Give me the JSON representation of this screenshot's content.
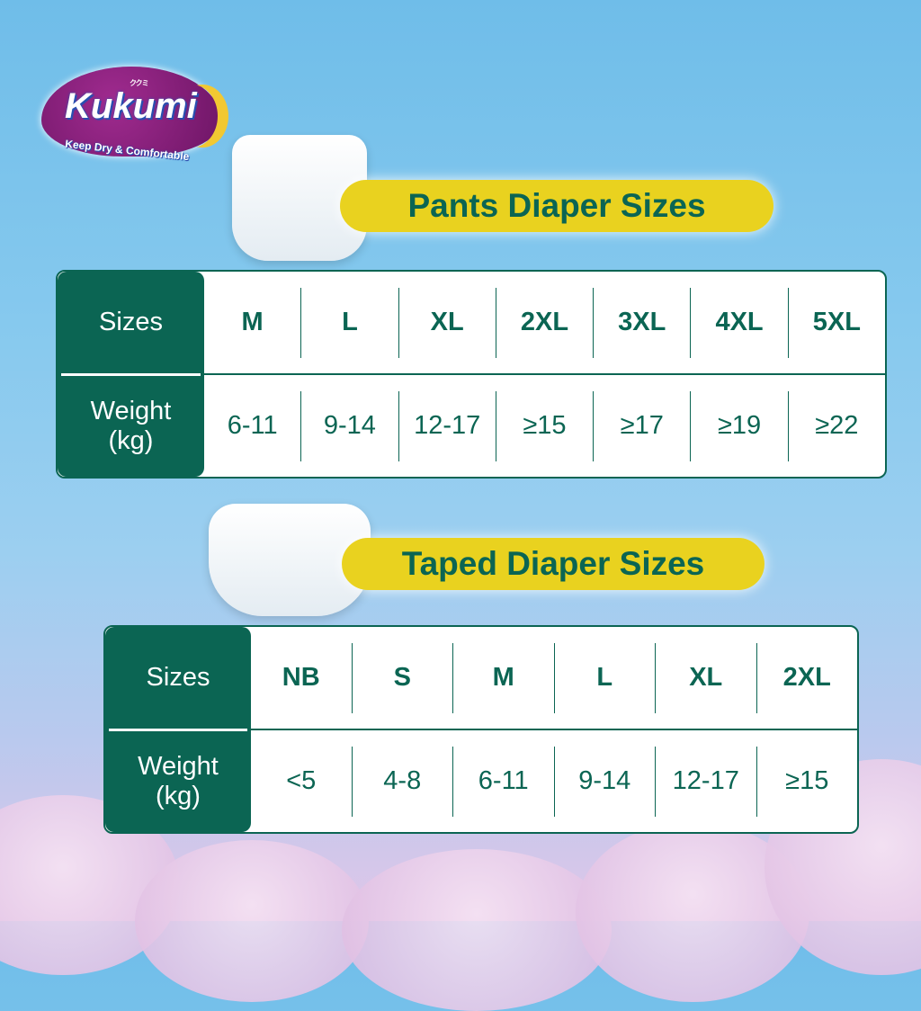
{
  "brand": {
    "name": "Kukumi",
    "kana": "ククミ",
    "tagline": "Keep Dry & Comfortable"
  },
  "colors": {
    "green": "#0b6553",
    "yellow": "#e9d21f",
    "logo_purple": "#8a1f7d"
  },
  "pants": {
    "title": "Pants Diaper Sizes",
    "row_headers": [
      "Sizes",
      "Weight (kg)"
    ],
    "sizes": [
      "M",
      "L",
      "XL",
      "2XL",
      "3XL",
      "4XL",
      "5XL"
    ],
    "weights": [
      "6-11",
      "9-14",
      "12-17",
      "≥15",
      "≥17",
      "≥19",
      "≥22"
    ]
  },
  "taped": {
    "title": "Taped Diaper Sizes",
    "row_headers": [
      "Sizes",
      "Weight (kg)"
    ],
    "sizes": [
      "NB",
      "S",
      "M",
      "L",
      "XL",
      "2XL"
    ],
    "weights": [
      "<5",
      "4-8",
      "6-11",
      "9-14",
      "12-17",
      "≥15"
    ]
  }
}
